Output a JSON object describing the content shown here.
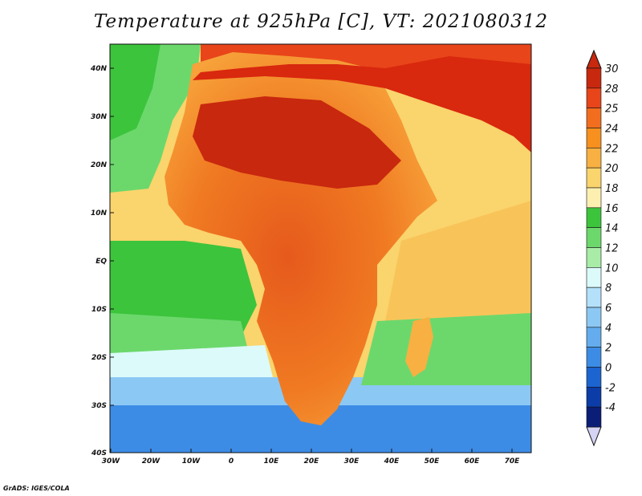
{
  "title": "Temperature at 925hPa [C], VT: 2021080312",
  "credit": "GrADS: IGES/COLA",
  "lat_ticks": [
    "40N",
    "30N",
    "20N",
    "10N",
    "EQ",
    "10S",
    "20S",
    "30S",
    "40S"
  ],
  "lon_ticks": [
    "30W",
    "20W",
    "10W",
    "0",
    "10E",
    "20E",
    "30E",
    "40E",
    "50E",
    "60E",
    "70E"
  ],
  "colorbar": {
    "labels": [
      "30",
      "28",
      "25",
      "24",
      "22",
      "20",
      "18",
      "16",
      "14",
      "12",
      "10",
      "8",
      "6",
      "4",
      "2",
      "0",
      "-2",
      "-4"
    ],
    "colors": [
      "#c8280e",
      "#e8451a",
      "#f26e1e",
      "#f7901e",
      "#f8b042",
      "#fad46c",
      "#fcefb0",
      "#3cc43c",
      "#6cd86c",
      "#a8eca8",
      "#dcfafa",
      "#b4e0fa",
      "#8cc8f4",
      "#64acee",
      "#3c8ce6",
      "#1c64d0",
      "#0c3ca8",
      "#0a1e78"
    ]
  }
}
